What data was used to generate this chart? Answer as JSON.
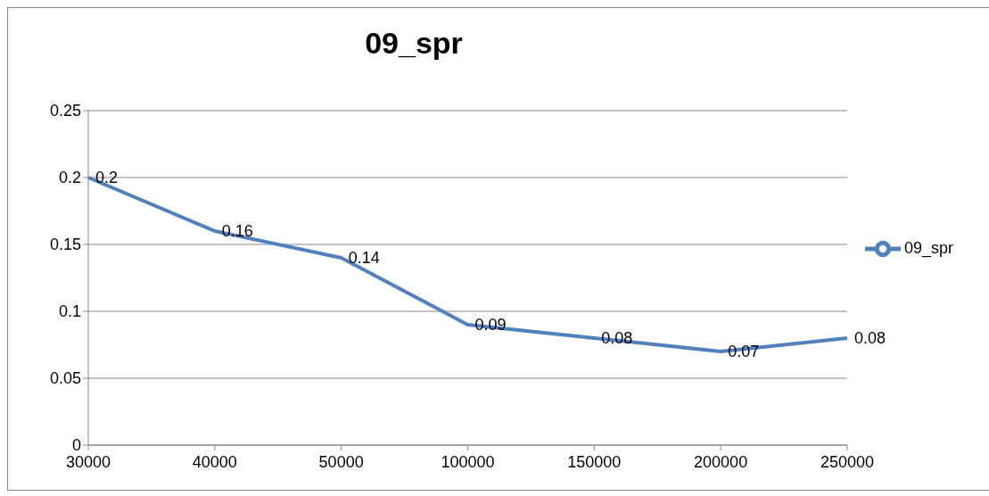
{
  "chart_data": {
    "type": "line",
    "title": "09_spr",
    "categories": [
      "30000",
      "40000",
      "50000",
      "100000",
      "150000",
      "200000",
      "250000"
    ],
    "series": [
      {
        "name": "09_spr",
        "color": "#4f81bd",
        "values": [
          0.2,
          0.16,
          0.14,
          0.09,
          0.08,
          0.07,
          0.08
        ]
      }
    ],
    "ylim": [
      0,
      0.25
    ],
    "yticks": [
      0,
      0.05,
      0.1,
      0.15,
      0.2,
      0.25
    ],
    "grid": "y",
    "legend": "right",
    "marker": "none",
    "data_labels": true
  }
}
